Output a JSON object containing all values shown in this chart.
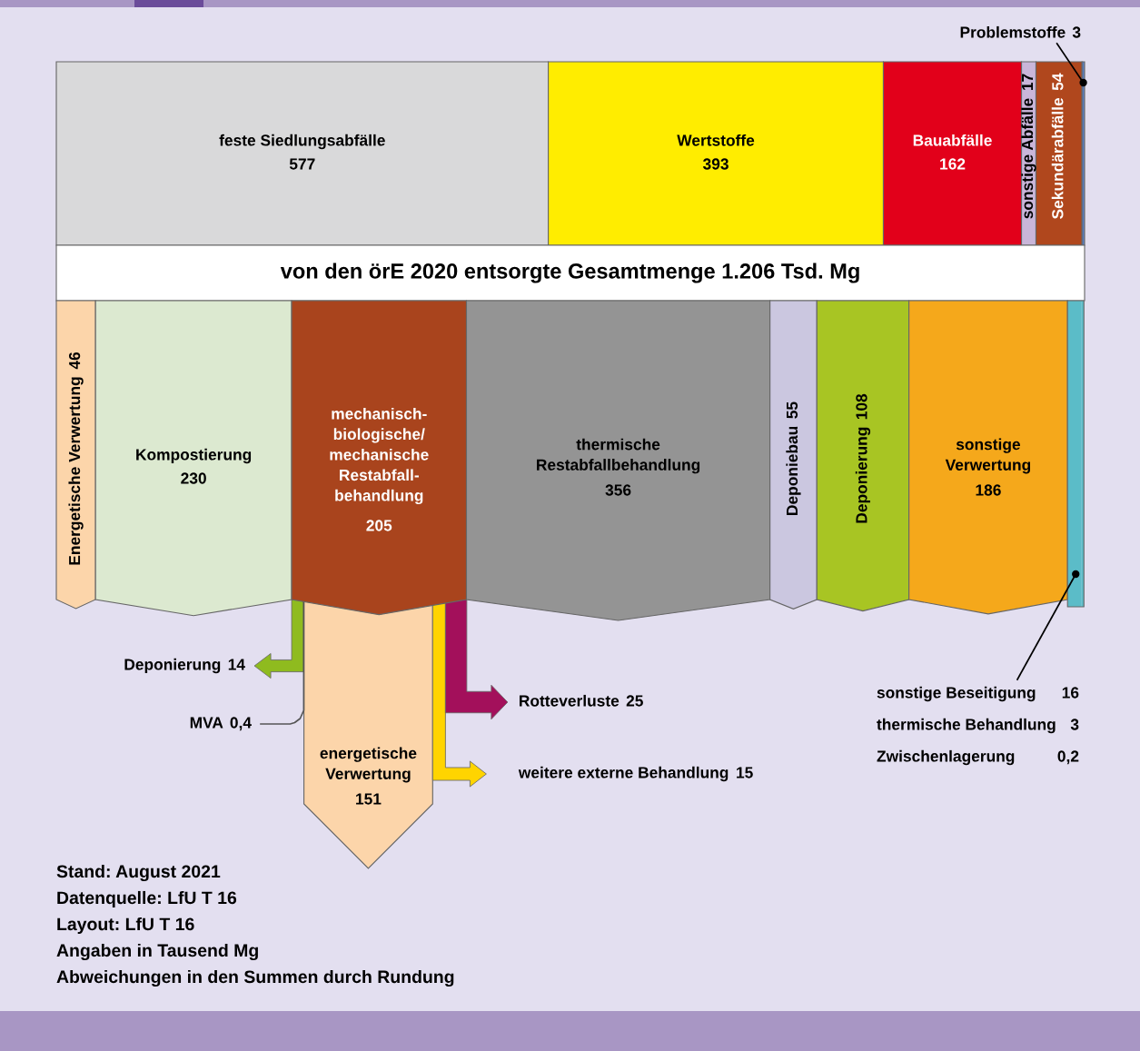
{
  "chart_data": [
    {
      "type": "other",
      "title": "von den örE 2020 entsorgte Gesamtmenge 1.206 Tsd. Mg",
      "categories": [
        "feste Siedlungsabfälle",
        "Wertstoffe",
        "Bauabfälle",
        "sonstige Abfälle",
        "Sekundärabfälle",
        "Problemstoffe"
      ],
      "values": [
        577,
        393,
        162,
        17,
        54,
        3
      ],
      "colors": [
        "#d9d9da",
        "#ffed00",
        "#e2001a",
        "#c9b6d9",
        "#b0471d",
        "#5b7fbf"
      ],
      "data_labels": true
    },
    {
      "type": "other",
      "categories": [
        "Energetische Verwertung",
        "Kompostierung",
        "mechanisch-\nbiologische/\nmechanische\nRestabfall-\nbehandlung",
        "thermische\nRestabfallbehandlung",
        "Deponiebau",
        "Deponierung",
        "sonstige\nVerwertung"
      ],
      "values": [
        46,
        230,
        205,
        356,
        55,
        108,
        186
      ],
      "colors": [
        "#fcd5aa",
        "#dce9d0",
        "#a9441d",
        "#949494",
        "#cbc7e0",
        "#a8c523",
        "#f5a81b"
      ],
      "data_labels": true
    },
    {
      "type": "other",
      "categories": [
        "Deponierung",
        "MVA",
        "energetische\nVerwertung",
        "weitere externe Behandlung",
        "Rotteverluste"
      ],
      "values": [
        14,
        0.4,
        151,
        15,
        25
      ],
      "value_labels": [
        "14",
        "0,4",
        "151",
        "15",
        "25"
      ],
      "colors": [
        "#8fbb1f",
        "#555555",
        "#fcd5aa",
        "#ffd400",
        "#a3105b"
      ]
    },
    {
      "type": "other",
      "categories": [
        "sonstige Beseitigung",
        "thermische Behandlung",
        "Zwischenlagerung"
      ],
      "values": [
        16,
        3,
        0.2
      ],
      "value_labels": [
        "16",
        "3",
        "0,2"
      ],
      "colors": [
        "#5bbcc8",
        "#5bbcc8",
        "#5bbcc8"
      ],
      "annotations": [
        "Stand: August 2021",
        "Datenquelle: LfU T 16",
        "Layout: LfU T 16",
        "Angaben in Tausend Mg",
        "Abweichungen in den Summen durch Rundung"
      ]
    }
  ]
}
